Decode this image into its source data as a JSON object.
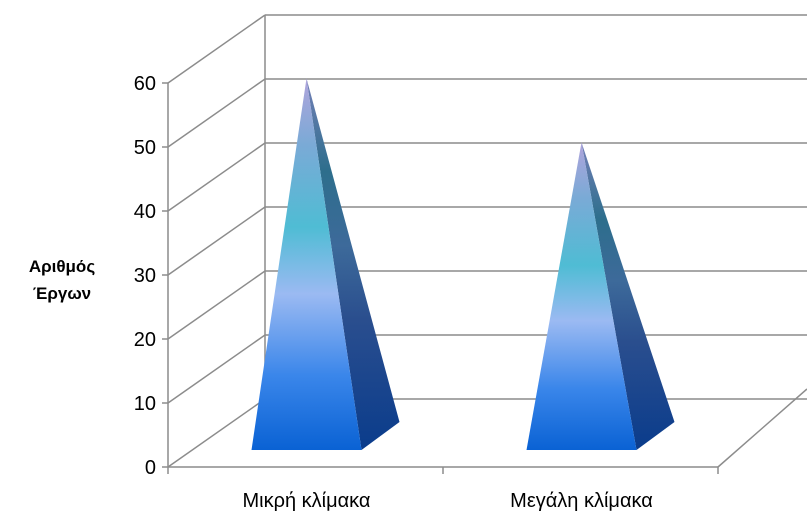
{
  "chart_data": {
    "type": "bar",
    "style": "3d-pyramid",
    "categories": [
      "Μικρή κλίμακα",
      "Μεγάλη κλίμακα"
    ],
    "values": [
      59,
      49
    ],
    "series": [
      {
        "values": [
          59,
          49
        ]
      }
    ],
    "ylabel_lines": [
      "Αριθμός",
      "Έργων"
    ],
    "xlabel": "",
    "title": "",
    "ylim": [
      0,
      60
    ],
    "yticks": [
      "0",
      "10",
      "20",
      "30",
      "40",
      "50",
      "60"
    ],
    "grid": true,
    "legend": "none",
    "colors": {
      "gridline": "#8c8c8c",
      "pyramid_top": "#a8a0dc",
      "pyramid_mid": "#4fbcd4",
      "pyramid_light": "#8fb8f0",
      "pyramid_base": "#0a62d4",
      "pyramid_side_top": "#2d6e8c",
      "pyramid_side_base": "#0a3c8c"
    }
  }
}
